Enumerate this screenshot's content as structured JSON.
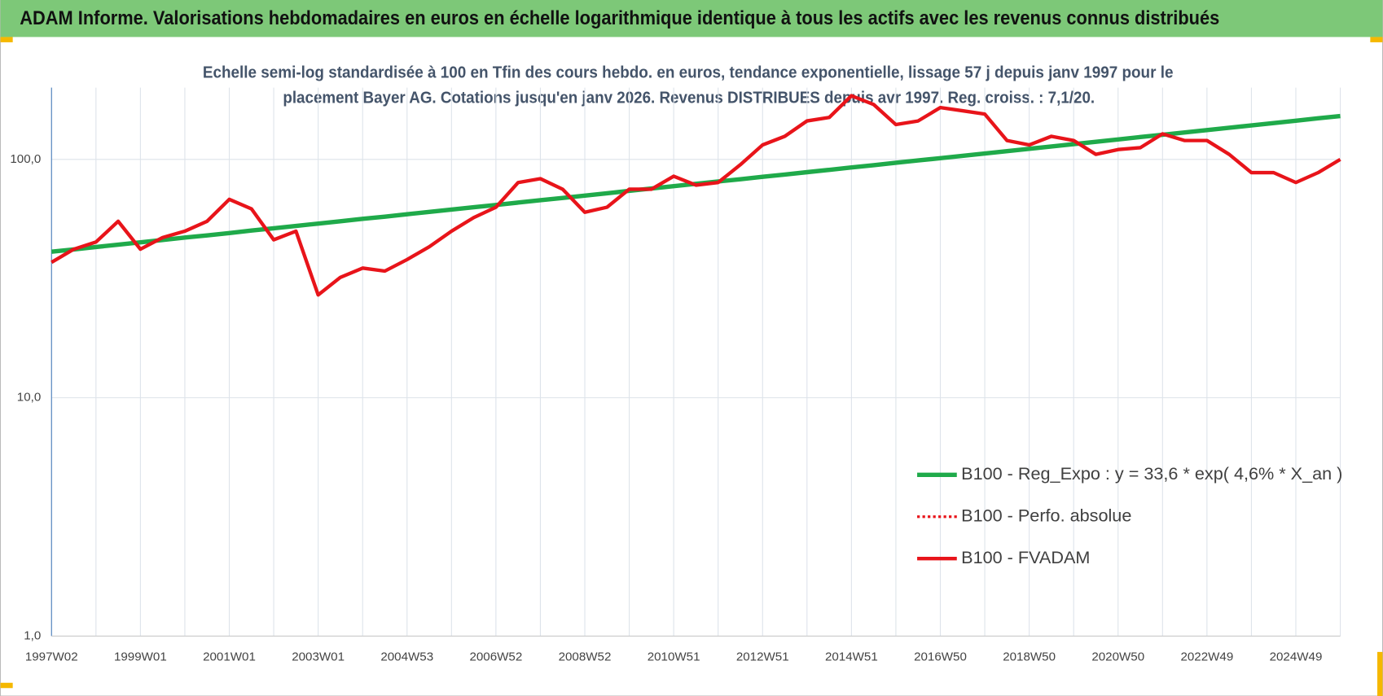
{
  "chart_data": {
    "type": "line",
    "title": "ADAM Informe. Valorisations hebdomadaires en euros en échelle logarithmique identique à tous les actifs avec les revenus connus distribués",
    "subtitle": [
      "Echelle semi-log standardisée à 100 en Tfin des cours hebdo. en euros, tendance exponentielle, lissage 57 j depuis janv 1997 pour le",
      "placement Bayer AG. Cotations jusqu'en janv 2026. Revenus DISTRIBUES depuis avr 1997. Reg. croiss. : 7,1/20."
    ],
    "categories": [
      "1997W02",
      null,
      null,
      null,
      "1999W01",
      null,
      null,
      null,
      "2001W01",
      null,
      null,
      null,
      "2003W01",
      null,
      null,
      null,
      "2004W53",
      null,
      null,
      null,
      "2006W52",
      null,
      null,
      null,
      "2008W52",
      null,
      null,
      null,
      "2010W51",
      null,
      null,
      null,
      "2012W51",
      null,
      null,
      null,
      "2014W51",
      null,
      null,
      null,
      "2016W50",
      null,
      null,
      null,
      "2018W50",
      null,
      null,
      null,
      "2020W50",
      null,
      null,
      null,
      "2022W49",
      null,
      null,
      null,
      "2024W49",
      null,
      null
    ],
    "series": [
      {
        "name": "B100 - Reg_Expo : y = 33,6 * exp( 4,6% *  X_an )",
        "color": "#1faa4a",
        "line_style": "solid",
        "width": 5,
        "values": [
          41.0,
          41.9,
          42.9,
          43.9,
          44.9,
          45.9,
          47.0,
          48.0,
          49.1,
          50.3,
          51.4,
          52.6,
          53.8,
          55.0,
          56.3,
          57.5,
          58.9,
          60.2,
          61.6,
          63.0,
          64.4,
          65.9,
          67.4,
          68.9,
          70.5,
          72.1,
          73.8,
          75.5,
          77.2,
          79.0,
          80.8,
          82.6,
          84.5,
          86.4,
          88.4,
          90.4,
          92.5,
          94.6,
          96.8,
          99.0,
          101.2,
          103.5,
          105.9,
          108.3,
          110.8,
          113.3,
          115.9,
          118.6,
          121.3,
          124.1,
          126.9,
          129.8,
          132.8,
          135.8,
          138.9,
          142.1,
          145.3,
          148.7,
          152.1
        ]
      },
      {
        "name": "B100 - Perfo. absolue",
        "color": "#e8141a",
        "line_style": "dotted",
        "width": 3,
        "values": [
          37,
          42,
          45,
          55,
          42,
          47,
          50,
          55,
          68,
          62,
          46,
          50,
          27,
          32,
          35,
          34,
          38,
          43,
          50,
          57,
          63,
          80,
          83,
          75,
          60,
          63,
          75,
          75,
          85,
          78,
          80,
          95,
          115,
          125,
          145,
          150,
          185,
          170,
          140,
          145,
          165,
          160,
          155,
          120,
          115,
          125,
          120,
          105,
          110,
          112,
          128,
          120,
          120,
          105,
          88,
          88,
          80,
          88,
          100
        ]
      },
      {
        "name": "B100 - FVADAM",
        "color": "#e8141a",
        "line_style": "solid",
        "width": 4,
        "values": [
          37,
          42,
          45,
          55,
          42,
          47,
          50,
          55,
          68,
          62,
          46,
          50,
          27,
          32,
          35,
          34,
          38,
          43,
          50,
          57,
          63,
          80,
          83,
          75,
          60,
          63,
          75,
          75,
          85,
          78,
          80,
          95,
          115,
          125,
          145,
          150,
          185,
          170,
          140,
          145,
          165,
          160,
          155,
          120,
          115,
          125,
          120,
          105,
          110,
          112,
          128,
          120,
          120,
          105,
          88,
          88,
          80,
          88,
          100
        ]
      }
    ],
    "log_scale": true,
    "ylim": [
      1,
      200
    ],
    "yticks": [
      {
        "value": 1,
        "label": "1,0"
      },
      {
        "value": 10,
        "label": "10,0"
      },
      {
        "value": 100,
        "label": "100,0"
      }
    ],
    "grid": true,
    "legend_position": "lower right"
  }
}
